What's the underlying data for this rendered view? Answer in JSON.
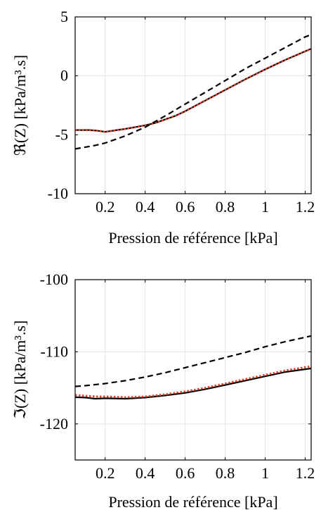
{
  "chart_data": [
    {
      "type": "line",
      "xlabel": "Pression de référence [kPa]",
      "ylabel": "ℜ(Z) [kPa/m³.s]",
      "xlim": [
        0.05,
        1.23
      ],
      "ylim": [
        -10,
        5
      ],
      "xticks": [
        0.2,
        0.4,
        0.6,
        0.8,
        1.0,
        1.2
      ],
      "xtick_labels": [
        "0.2",
        "0.4",
        "0.6",
        "0.8",
        "1",
        "1.2"
      ],
      "yticks": [
        -10,
        -5,
        0,
        5
      ],
      "ytick_labels": [
        "-10",
        "-5",
        "0",
        "5"
      ],
      "grid": true,
      "series": [
        {
          "style": "solid",
          "color": "#000000",
          "x": [
            0.05,
            0.12,
            0.16,
            0.2,
            0.22,
            0.26,
            0.3,
            0.35,
            0.4,
            0.45,
            0.5,
            0.55,
            0.6,
            0.7,
            0.8,
            0.9,
            1.0,
            1.1,
            1.23
          ],
          "y": [
            -4.6,
            -4.6,
            -4.65,
            -4.75,
            -4.7,
            -4.6,
            -4.5,
            -4.35,
            -4.2,
            -4.0,
            -3.7,
            -3.4,
            -3.0,
            -2.1,
            -1.2,
            -0.3,
            0.55,
            1.35,
            2.3
          ]
        },
        {
          "style": "dotted",
          "color": "#e0442b",
          "x": [
            0.05,
            0.12,
            0.16,
            0.2,
            0.22,
            0.26,
            0.3,
            0.35,
            0.4,
            0.45,
            0.5,
            0.55,
            0.6,
            0.7,
            0.8,
            0.9,
            1.0,
            1.1,
            1.23
          ],
          "y": [
            -4.6,
            -4.6,
            -4.65,
            -4.75,
            -4.7,
            -4.6,
            -4.5,
            -4.35,
            -4.2,
            -4.0,
            -3.7,
            -3.4,
            -3.0,
            -2.1,
            -1.2,
            -0.3,
            0.55,
            1.35,
            2.3
          ]
        },
        {
          "style": "dashed",
          "color": "#000000",
          "x": [
            0.05,
            0.15,
            0.2,
            0.3,
            0.4,
            0.5,
            0.6,
            0.7,
            0.8,
            0.9,
            1.0,
            1.1,
            1.2,
            1.23
          ],
          "y": [
            -6.2,
            -5.9,
            -5.7,
            -5.1,
            -4.35,
            -3.4,
            -2.4,
            -1.4,
            -0.4,
            0.6,
            1.5,
            2.4,
            3.3,
            3.5
          ]
        }
      ]
    },
    {
      "type": "line",
      "xlabel": "Pression de référence [kPa]",
      "ylabel": "ℑ(Z) [kPa/m³.s]",
      "xlim": [
        0.05,
        1.23
      ],
      "ylim": [
        -125,
        -100
      ],
      "xticks": [
        0.2,
        0.4,
        0.6,
        0.8,
        1.0,
        1.2
      ],
      "xtick_labels": [
        "0.2",
        "0.4",
        "0.6",
        "0.8",
        "1",
        "1.2"
      ],
      "yticks": [
        -120,
        -110,
        -100
      ],
      "ytick_labels": [
        "-120",
        "-110",
        "-100"
      ],
      "grid": true,
      "series": [
        {
          "style": "solid",
          "color": "#000000",
          "x": [
            0.05,
            0.1,
            0.15,
            0.2,
            0.3,
            0.4,
            0.5,
            0.6,
            0.7,
            0.8,
            0.9,
            1.0,
            1.1,
            1.23
          ],
          "y": [
            -116.3,
            -116.35,
            -116.5,
            -116.45,
            -116.5,
            -116.35,
            -116.05,
            -115.7,
            -115.2,
            -114.6,
            -114.0,
            -113.4,
            -112.8,
            -112.3
          ]
        },
        {
          "style": "dotted",
          "color": "#e0442b",
          "x": [
            0.05,
            0.1,
            0.15,
            0.2,
            0.3,
            0.4,
            0.5,
            0.6,
            0.7,
            0.8,
            0.9,
            1.0,
            1.1,
            1.23
          ],
          "y": [
            -116.0,
            -116.1,
            -116.2,
            -116.2,
            -116.3,
            -116.2,
            -115.9,
            -115.5,
            -115.0,
            -114.4,
            -113.8,
            -113.2,
            -112.6,
            -112.0
          ]
        },
        {
          "style": "dashed",
          "color": "#000000",
          "x": [
            0.05,
            0.1,
            0.2,
            0.3,
            0.4,
            0.5,
            0.6,
            0.7,
            0.8,
            0.9,
            1.0,
            1.1,
            1.23
          ],
          "y": [
            -114.8,
            -114.7,
            -114.4,
            -114.0,
            -113.5,
            -112.9,
            -112.2,
            -111.5,
            -110.8,
            -110.1,
            -109.3,
            -108.6,
            -107.8
          ]
        }
      ]
    }
  ]
}
